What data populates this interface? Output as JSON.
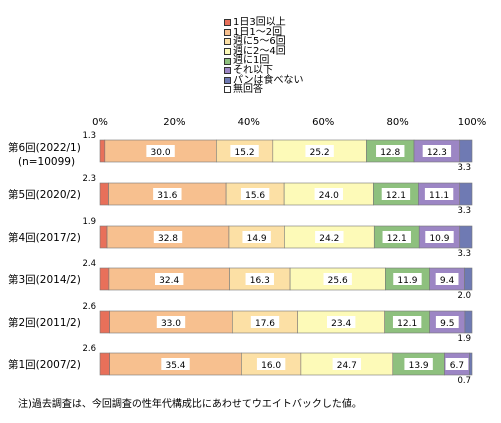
{
  "chart_data": {
    "type": "bar",
    "orientation": "horizontal",
    "stacked": "100%",
    "x_ticks": [
      "0%",
      "20%",
      "40%",
      "60%",
      "80%",
      "100%"
    ],
    "xlim": [
      0,
      100
    ],
    "grid": false,
    "legend_position": "top-center",
    "categories": [
      "第6回(2022/1)",
      "第5回(2020/2)",
      "第4回(2017/2)",
      "第3回(2014/2)",
      "第2回(2011/2)",
      "第1回(2007/2)"
    ],
    "category_notes": [
      "(n=10099)",
      "",
      "",
      "",
      "",
      ""
    ],
    "series": [
      {
        "name": "1日3回以上",
        "color": "#e8705a",
        "values": [
          1.3,
          2.3,
          1.9,
          2.4,
          2.6,
          2.6
        ]
      },
      {
        "name": "1日1〜2回",
        "color": "#f7c08f",
        "values": [
          30.0,
          31.6,
          32.8,
          32.4,
          33.0,
          35.4
        ]
      },
      {
        "name": "週に5〜6回",
        "color": "#fce0a5",
        "values": [
          15.2,
          15.6,
          14.9,
          16.3,
          17.6,
          16.0
        ]
      },
      {
        "name": "週に2〜4回",
        "color": "#fdfab8",
        "values": [
          25.2,
          24.0,
          24.2,
          25.6,
          23.4,
          24.7
        ]
      },
      {
        "name": "週に1回",
        "color": "#8ec07e",
        "values": [
          12.8,
          12.1,
          12.1,
          11.9,
          12.1,
          13.9
        ]
      },
      {
        "name": "それ以下",
        "color": "#9c86c4",
        "values": [
          12.3,
          11.1,
          10.9,
          9.4,
          9.5,
          6.7
        ]
      },
      {
        "name": "パンは食べない",
        "color": "#6f7ab3",
        "values": [
          3.3,
          3.3,
          3.3,
          2.0,
          1.9,
          0.7
        ]
      },
      {
        "name": "無回答",
        "color": "#ffffff",
        "values": [
          0,
          0,
          0,
          0,
          0,
          0
        ]
      }
    ],
    "labels": {
      "above": [
        "1.3",
        "2.3",
        "1.9",
        "2.4",
        "2.6",
        "2.6"
      ],
      "inside": [
        [
          "30.0",
          "15.2",
          "25.2",
          "12.8",
          "12.3"
        ],
        [
          "31.6",
          "15.6",
          "24.0",
          "12.1",
          "11.1"
        ],
        [
          "32.8",
          "14.9",
          "24.2",
          "12.1",
          "10.9"
        ],
        [
          "32.4",
          "16.3",
          "25.6",
          "11.9",
          "9.4"
        ],
        [
          "33.0",
          "17.6",
          "23.4",
          "12.1",
          "9.5"
        ],
        [
          "35.4",
          "16.0",
          "24.7",
          "13.9",
          "6.7"
        ]
      ],
      "below": [
        "3.3",
        "3.3",
        "3.3",
        "2.0",
        "1.9",
        "0.7"
      ]
    }
  },
  "note": "注)過去調査は、今回調査の性年代構成比にあわせてウエイトバックした値。"
}
